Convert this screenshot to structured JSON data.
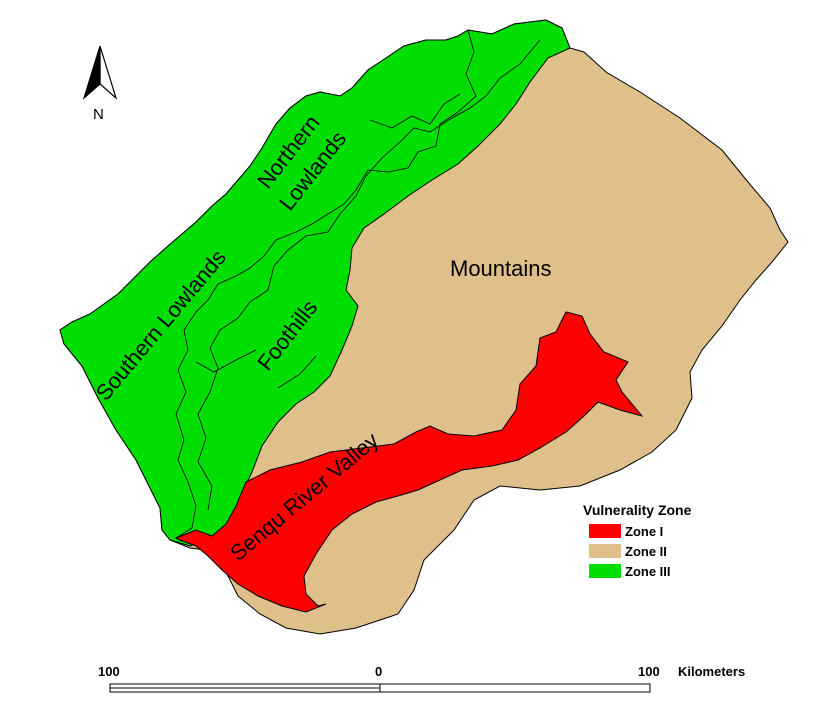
{
  "north_arrow": {
    "letter": "N"
  },
  "regions": {
    "northern_lowlands": {
      "line1": "Northern",
      "line2": "Lowlands"
    },
    "southern_lowlands": "Southern Lowlands",
    "foothills": "Foothills",
    "mountains": "Mountains",
    "senqu_river_valley": "Senqu River Valley"
  },
  "legend": {
    "title": "Vulnerality Zone",
    "items": [
      {
        "label": "Zone I",
        "color": "#ff0000"
      },
      {
        "label": "Zone II",
        "color": "#dfc08a"
      },
      {
        "label": "Zone III",
        "color": "#00dd00"
      }
    ]
  },
  "scale_bar": {
    "left_label": "100",
    "mid_label": "0",
    "right_label": "100",
    "unit": "Kilometers"
  },
  "colors": {
    "zone_i": "#ff0000",
    "zone_ii": "#dfc08a",
    "zone_iii": "#00dd00",
    "outline": "#000000"
  }
}
